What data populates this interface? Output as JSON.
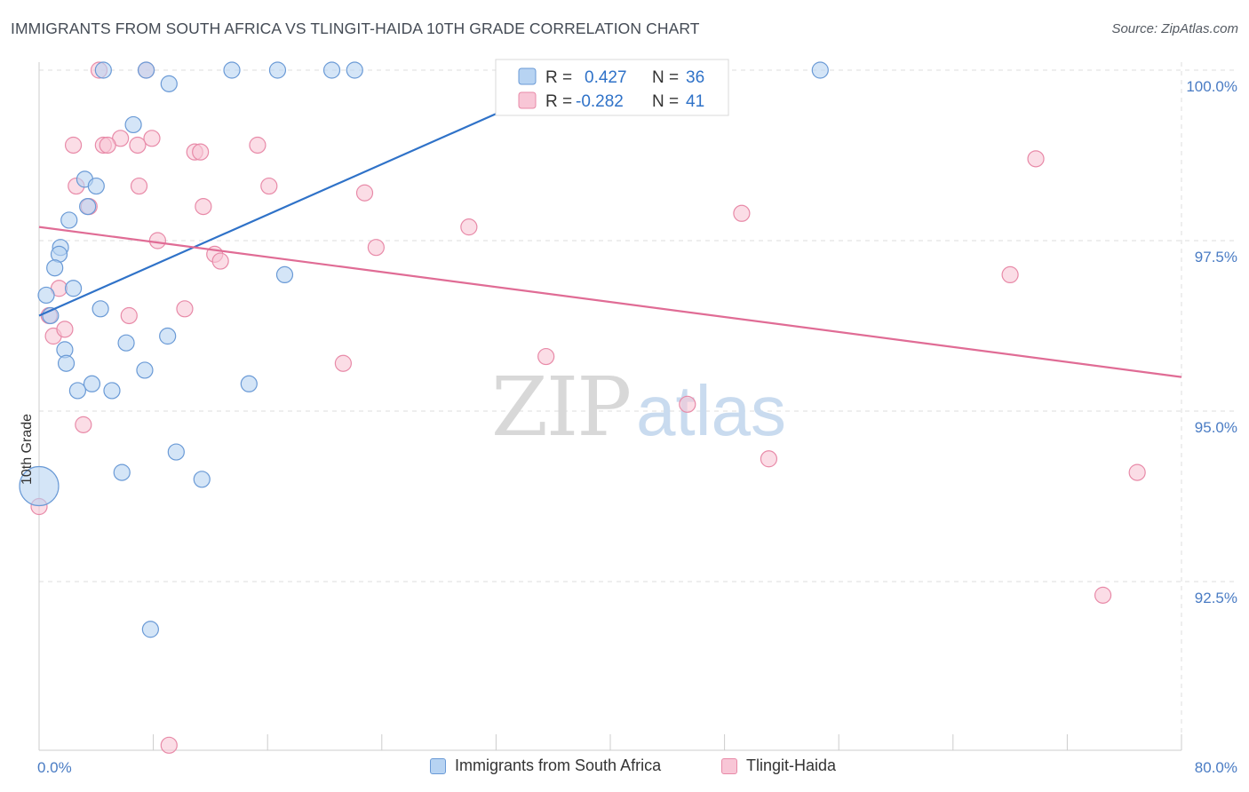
{
  "title": "IMMIGRANTS FROM SOUTH AFRICA VS TLINGIT-HAIDA 10TH GRADE CORRELATION CHART",
  "source": "Source: ZipAtlas.com",
  "watermark": {
    "zip": "ZIP",
    "atlas": "atlas"
  },
  "colors": {
    "blue_fill": "#b7d3f2",
    "blue_stroke": "#6a9ad6",
    "blue_line": "#2f72c8",
    "pink_fill": "#f8c6d6",
    "pink_stroke": "#e88aa8",
    "pink_line": "#e06c95",
    "grid": "#dddddd",
    "axis_label": "#4a7cc4"
  },
  "legend_box": {
    "rows": [
      {
        "r_label": "R =",
        "r_value": "0.427",
        "n_label": "N =",
        "n_value": "36"
      },
      {
        "r_label": "R =",
        "r_value": "-0.282",
        "n_label": "N =",
        "n_value": "41"
      }
    ]
  },
  "chart_data": {
    "type": "scatter",
    "title": "IMMIGRANTS FROM SOUTH AFRICA VS TLINGIT-HAIDA 10TH GRADE CORRELATION CHART",
    "xlabel": "",
    "ylabel": "10th Grade",
    "xlim": [
      0,
      80
    ],
    "ylim": [
      90.0,
      100.3
    ],
    "x_tick_labels": [
      "0.0%",
      "80.0%"
    ],
    "y_ticks": [
      92.5,
      95.0,
      97.5,
      100.0
    ],
    "y_tick_labels": [
      "92.5%",
      "95.0%",
      "97.5%",
      "100.0%"
    ],
    "grid": true,
    "legend_position": "top-center",
    "series": [
      {
        "name": "Immigrants from South Africa",
        "color": "#b7d3f2",
        "r": 0.427,
        "n": 36,
        "trend": {
          "x": [
            0.0,
            40.0
          ],
          "y": [
            96.4,
            100.1
          ]
        },
        "points": [
          {
            "x": 4.5,
            "y": 100.0
          },
          {
            "x": 7.5,
            "y": 100.0
          },
          {
            "x": 13.5,
            "y": 100.0
          },
          {
            "x": 16.7,
            "y": 100.0
          },
          {
            "x": 20.5,
            "y": 100.0
          },
          {
            "x": 22.1,
            "y": 100.0
          },
          {
            "x": 33.7,
            "y": 100.0
          },
          {
            "x": 54.7,
            "y": 100.0
          },
          {
            "x": 9.1,
            "y": 99.8
          },
          {
            "x": 6.6,
            "y": 99.2
          },
          {
            "x": 3.2,
            "y": 98.4
          },
          {
            "x": 4.0,
            "y": 98.3
          },
          {
            "x": 3.4,
            "y": 98.0
          },
          {
            "x": 2.1,
            "y": 97.8
          },
          {
            "x": 1.5,
            "y": 97.4
          },
          {
            "x": 1.4,
            "y": 97.3
          },
          {
            "x": 1.1,
            "y": 97.1
          },
          {
            "x": 17.2,
            "y": 97.0
          },
          {
            "x": 2.4,
            "y": 96.8
          },
          {
            "x": 0.5,
            "y": 96.7
          },
          {
            "x": 4.3,
            "y": 96.5
          },
          {
            "x": 0.8,
            "y": 96.4
          },
          {
            "x": 9.0,
            "y": 96.1
          },
          {
            "x": 6.1,
            "y": 96.0
          },
          {
            "x": 1.8,
            "y": 95.9
          },
          {
            "x": 1.9,
            "y": 95.7
          },
          {
            "x": 7.4,
            "y": 95.6
          },
          {
            "x": 14.7,
            "y": 95.4
          },
          {
            "x": 3.7,
            "y": 95.4
          },
          {
            "x": 2.7,
            "y": 95.3
          },
          {
            "x": 5.1,
            "y": 95.3
          },
          {
            "x": 9.6,
            "y": 94.4
          },
          {
            "x": 5.8,
            "y": 94.1
          },
          {
            "x": 11.4,
            "y": 94.0
          },
          {
            "x": 0.0,
            "y": 93.9,
            "large": true
          },
          {
            "x": 7.8,
            "y": 91.8
          }
        ]
      },
      {
        "name": "Tlingit-Haida",
        "color": "#f8c6d6",
        "r": -0.282,
        "n": 41,
        "trend": {
          "x": [
            0.0,
            80.0
          ],
          "y": [
            97.7,
            95.5
          ]
        },
        "points": [
          {
            "x": 4.2,
            "y": 100.0
          },
          {
            "x": 7.5,
            "y": 100.0
          },
          {
            "x": 36.6,
            "y": 100.0
          },
          {
            "x": 5.7,
            "y": 99.0
          },
          {
            "x": 7.9,
            "y": 99.0
          },
          {
            "x": 4.5,
            "y": 98.9
          },
          {
            "x": 4.8,
            "y": 98.9
          },
          {
            "x": 2.4,
            "y": 98.9
          },
          {
            "x": 15.3,
            "y": 98.9
          },
          {
            "x": 10.9,
            "y": 98.8
          },
          {
            "x": 11.3,
            "y": 98.8
          },
          {
            "x": 69.8,
            "y": 98.7
          },
          {
            "x": 6.9,
            "y": 98.9
          },
          {
            "x": 2.6,
            "y": 98.3
          },
          {
            "x": 7.0,
            "y": 98.3
          },
          {
            "x": 16.1,
            "y": 98.3
          },
          {
            "x": 22.8,
            "y": 98.2
          },
          {
            "x": 3.5,
            "y": 98.0
          },
          {
            "x": 11.5,
            "y": 98.0
          },
          {
            "x": 49.2,
            "y": 97.9
          },
          {
            "x": 30.1,
            "y": 97.7
          },
          {
            "x": 8.3,
            "y": 97.5
          },
          {
            "x": 23.6,
            "y": 97.4
          },
          {
            "x": 12.3,
            "y": 97.3
          },
          {
            "x": 12.7,
            "y": 97.2
          },
          {
            "x": 68.0,
            "y": 97.0
          },
          {
            "x": 1.4,
            "y": 96.8
          },
          {
            "x": 10.2,
            "y": 96.5
          },
          {
            "x": 6.3,
            "y": 96.4
          },
          {
            "x": 0.7,
            "y": 96.4
          },
          {
            "x": 1.0,
            "y": 96.1
          },
          {
            "x": 1.8,
            "y": 96.2
          },
          {
            "x": 35.5,
            "y": 95.8
          },
          {
            "x": 21.3,
            "y": 95.7
          },
          {
            "x": 45.4,
            "y": 95.1
          },
          {
            "x": 3.1,
            "y": 94.8
          },
          {
            "x": 51.1,
            "y": 94.3
          },
          {
            "x": 76.9,
            "y": 94.1
          },
          {
            "x": 0.0,
            "y": 93.6
          },
          {
            "x": 74.5,
            "y": 92.3
          },
          {
            "x": 9.1,
            "y": 90.1
          }
        ]
      }
    ]
  }
}
